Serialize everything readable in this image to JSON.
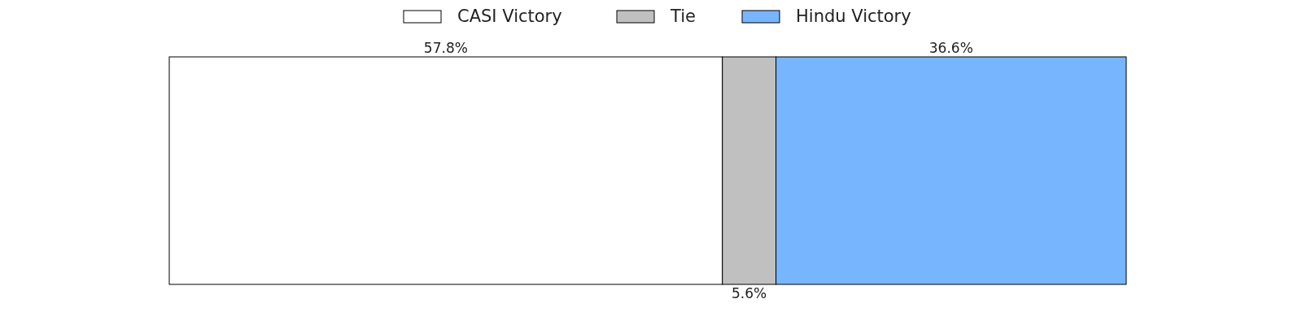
{
  "chart_data": {
    "type": "bar",
    "orientation": "horizontal",
    "stacked": true,
    "categories": [
      null
    ],
    "series": [
      {
        "name": "CASI Victory",
        "color": "#ffffff",
        "values": [
          57.8
        ],
        "value_labels": [
          "57.8%"
        ]
      },
      {
        "name": "Tie",
        "color": "#c0c0c0",
        "values": [
          5.6
        ],
        "value_labels": [
          "5.6%"
        ]
      },
      {
        "name": "Hindu Victory",
        "color": "#77b5fe",
        "values": [
          36.6
        ],
        "value_labels": [
          "36.6%"
        ]
      }
    ],
    "legend": "top"
  }
}
